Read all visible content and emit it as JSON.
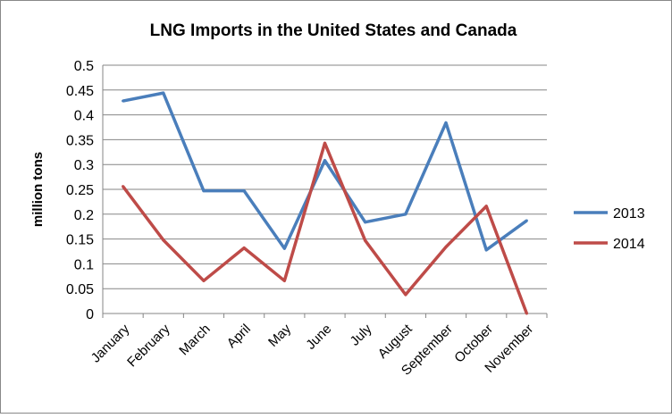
{
  "chart_data": {
    "type": "line",
    "title": "LNG Imports in the United States and Canada",
    "xlabel": "",
    "ylabel": "million tons",
    "ylim": [
      0,
      0.5
    ],
    "yticks": [
      "0",
      "0.05",
      "0.1",
      "0.15",
      "0.2",
      "0.25",
      "0.3",
      "0.35",
      "0.4",
      "0.45",
      "0.5"
    ],
    "grid": true,
    "legend": "right",
    "categories": [
      "January",
      "February",
      "March",
      "April",
      "May",
      "June",
      "July",
      "August",
      "September",
      "October",
      "November"
    ],
    "series": [
      {
        "name": "2013",
        "color": "#4a7ebb",
        "values": [
          0.428,
          0.444,
          0.247,
          0.247,
          0.131,
          0.308,
          0.184,
          0.2,
          0.384,
          0.128,
          0.187
        ]
      },
      {
        "name": "2014",
        "color": "#be4b48",
        "values": [
          0.256,
          0.148,
          0.066,
          0.132,
          0.066,
          0.343,
          0.147,
          0.038,
          0.134,
          0.216,
          0
        ]
      }
    ]
  }
}
